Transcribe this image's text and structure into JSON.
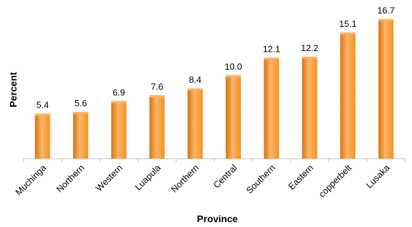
{
  "chart_data": {
    "type": "bar",
    "title": "",
    "xlabel": "Province",
    "ylabel": "Percent",
    "categories": [
      "Muchinga",
      "Northern",
      "Western",
      "Luapula",
      "Northern",
      "Central",
      "Southern",
      "Eastern",
      "copperbelt",
      "Lusaka"
    ],
    "values": [
      5.4,
      5.6,
      6.9,
      7.6,
      8.4,
      10.0,
      12.1,
      12.2,
      15.1,
      16.7
    ],
    "data_labels": [
      "5.4",
      "5.6",
      "6.9",
      "7.6",
      "8.4",
      "10.0",
      "12.1",
      "12.2",
      "15.1",
      "16.7"
    ],
    "ylim": [
      0,
      17.5
    ],
    "grid": false,
    "legend": "none",
    "bar_color": "#F7931E",
    "bar_highlight": "#FBB469",
    "bar_shadow": "#D9730D",
    "axis_color": "#BFBFBF"
  }
}
